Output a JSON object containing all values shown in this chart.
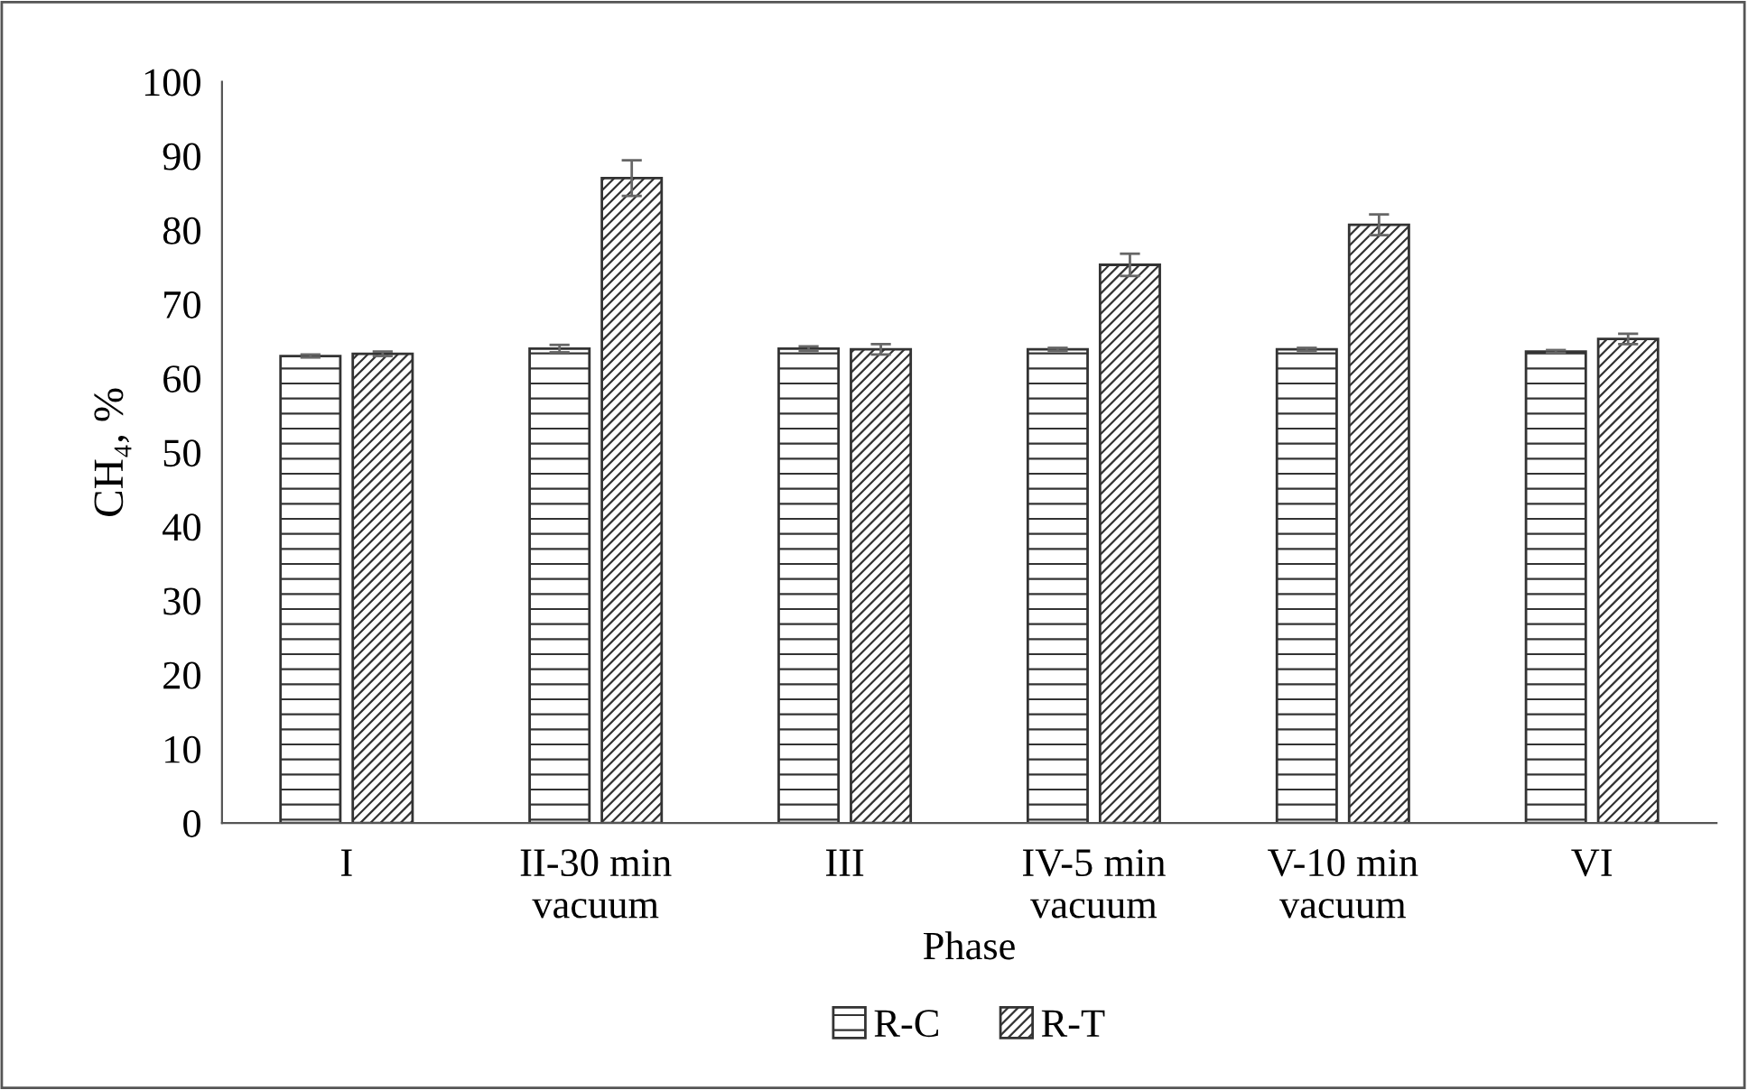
{
  "chart_data": {
    "type": "bar",
    "xlabel": "Phase",
    "ylabel": "CH₄, %",
    "categories": [
      "I",
      "II-30 min\nvacuum",
      "III",
      "IV-5 min\nvacuum",
      "V-10 min\nvacuum",
      "VI"
    ],
    "series": [
      {
        "name": "R-C",
        "color": "#333333",
        "values": [
          63.0,
          64.0,
          64.0,
          63.9,
          63.9,
          63.6
        ],
        "errors": [
          0.2,
          0.5,
          0.3,
          0.2,
          0.2,
          0.2
        ]
      },
      {
        "name": "R-T",
        "color": "#333333",
        "values": [
          63.3,
          87.0,
          63.9,
          75.3,
          80.7,
          65.3
        ],
        "errors": [
          0.3,
          2.4,
          0.7,
          1.5,
          1.4,
          0.7
        ]
      }
    ],
    "ylim": [
      0,
      100
    ],
    "yticks": [
      0,
      10,
      20,
      30,
      40,
      50,
      60,
      70,
      80,
      90,
      100
    ],
    "grid": false,
    "legend": "bottom"
  }
}
